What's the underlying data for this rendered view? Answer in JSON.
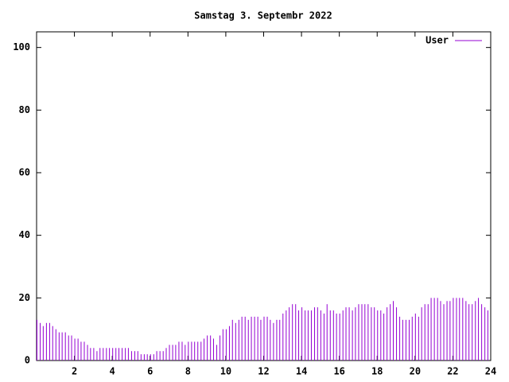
{
  "chart_data": {
    "type": "impulse",
    "title": "Samstag 3. Septembr 2022",
    "series": [
      {
        "name": "User",
        "color": "#9400d3",
        "values": [
          13,
          12,
          11,
          12,
          12,
          11,
          10,
          9,
          9,
          9,
          8,
          8,
          7,
          7,
          6,
          6,
          5,
          4,
          4,
          3,
          4,
          4,
          4,
          4,
          4,
          4,
          4,
          4,
          4,
          4,
          3,
          3,
          3,
          2,
          2,
          2,
          2,
          2,
          3,
          3,
          3,
          4,
          5,
          5,
          5,
          6,
          6,
          5,
          6,
          6,
          6,
          6,
          6,
          7,
          8,
          8,
          7,
          5,
          8,
          10,
          10,
          11,
          13,
          12,
          13,
          14,
          14,
          13,
          14,
          14,
          14,
          13,
          14,
          14,
          13,
          12,
          13,
          13,
          15,
          16,
          17,
          18,
          18,
          16,
          17,
          16,
          16,
          16,
          17,
          17,
          16,
          15,
          18,
          16,
          16,
          15,
          15,
          16,
          17,
          17,
          16,
          17,
          18,
          18,
          18,
          18,
          17,
          17,
          16,
          16,
          15,
          17,
          18,
          19,
          17,
          14,
          13,
          13,
          13,
          14,
          15,
          14,
          17,
          18,
          18,
          20,
          20,
          20,
          19,
          18,
          19,
          19,
          20,
          20,
          20,
          20,
          19,
          18,
          18,
          19,
          20,
          18,
          17,
          16
        ]
      }
    ],
    "x": [
      0,
      0.17,
      0.33,
      0.5,
      0.67,
      0.83,
      1,
      1.17,
      1.33,
      1.5,
      1.67,
      1.83,
      2,
      2.17,
      2.33,
      2.5,
      2.67,
      2.83,
      3,
      3.17,
      3.33,
      3.5,
      3.67,
      3.83,
      4,
      4.17,
      4.33,
      4.5,
      4.67,
      4.83,
      5,
      5.17,
      5.33,
      5.5,
      5.67,
      5.83,
      6,
      6.17,
      6.33,
      6.5,
      6.67,
      6.83,
      7,
      7.17,
      7.33,
      7.5,
      7.67,
      7.83,
      8,
      8.17,
      8.33,
      8.5,
      8.67,
      8.83,
      9,
      9.17,
      9.33,
      9.5,
      9.67,
      9.83,
      10,
      10.17,
      10.33,
      10.5,
      10.67,
      10.83,
      11,
      11.17,
      11.33,
      11.5,
      11.67,
      11.83,
      12,
      12.17,
      12.33,
      12.5,
      12.67,
      12.83,
      13,
      13.17,
      13.33,
      13.5,
      13.67,
      13.83,
      14,
      14.17,
      14.33,
      14.5,
      14.67,
      14.83,
      15,
      15.17,
      15.33,
      15.5,
      15.67,
      15.83,
      16,
      16.17,
      16.33,
      16.5,
      16.67,
      16.83,
      17,
      17.17,
      17.33,
      17.5,
      17.67,
      17.83,
      18,
      18.17,
      18.33,
      18.5,
      18.67,
      18.83,
      19,
      19.17,
      19.33,
      19.5,
      19.67,
      19.83,
      20,
      20.17,
      20.33,
      20.5,
      20.67,
      20.83,
      21,
      21.17,
      21.33,
      21.5,
      21.67,
      21.83,
      22,
      22.17,
      22.33,
      22.5,
      22.67,
      22.83,
      23,
      23.17,
      23.33,
      23.5,
      23.67,
      23.83
    ],
    "xlim": [
      0,
      24
    ],
    "xticks": [
      2,
      4,
      6,
      8,
      10,
      12,
      14,
      16,
      18,
      20,
      22,
      24
    ],
    "ylim": [
      0,
      105
    ],
    "yticks": [
      0,
      20,
      40,
      60,
      80,
      100
    ],
    "legend": "top-right"
  }
}
